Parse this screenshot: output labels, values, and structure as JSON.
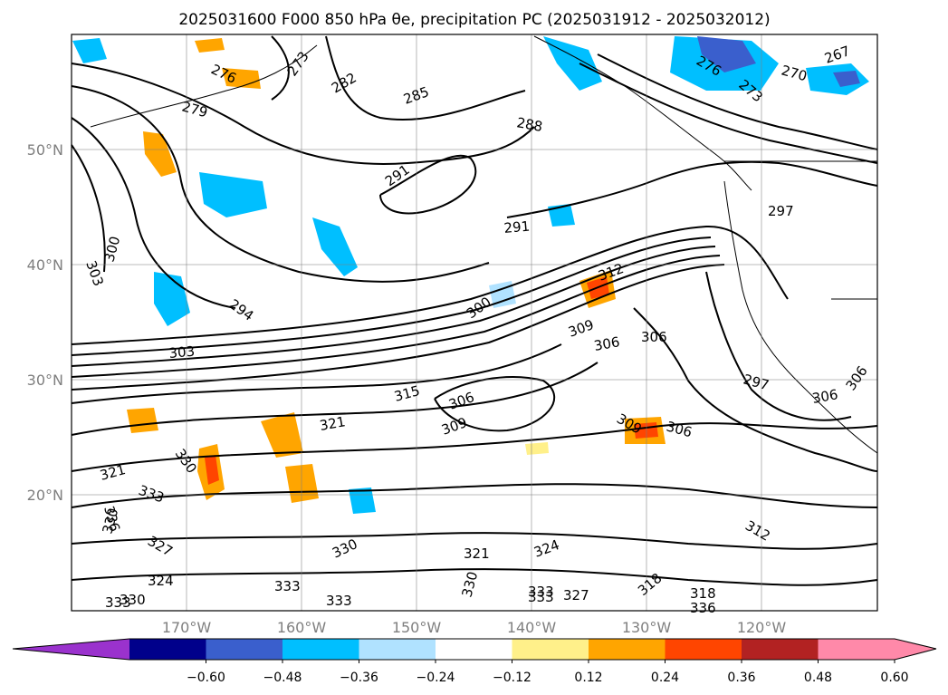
{
  "title": "2025031600 F000 850 hPa θe, precipitation PC (2025031912 - 2025032012)",
  "map": {
    "lat_labels": [
      "50°N",
      "40°N",
      "30°N",
      "20°N"
    ],
    "lon_labels": [
      "170°W",
      "160°W",
      "150°W",
      "140°W",
      "130°W",
      "120°W"
    ],
    "grid": true
  },
  "contour_labels": [
    "276",
    "273",
    "282",
    "285",
    "279",
    "288",
    "291",
    "291",
    "291",
    "267",
    "270",
    "276",
    "273",
    "297",
    "303",
    "300",
    "294",
    "312",
    "300",
    "309",
    "306",
    "306",
    "303",
    "315",
    "306",
    "309",
    "297",
    "306",
    "306",
    "309",
    "306",
    "321",
    "321",
    "330",
    "333",
    "336",
    "330",
    "327",
    "324",
    "330",
    "321",
    "324",
    "312",
    "333",
    "333",
    "330",
    "333",
    "327",
    "318",
    "318",
    "336",
    "333",
    "330",
    "333"
  ],
  "colorbar": {
    "ticks": [
      "−0.60",
      "−0.48",
      "−0.36",
      "−0.24",
      "−0.12",
      "0.12",
      "0.24",
      "0.36",
      "0.48",
      "0.60"
    ],
    "colors": [
      "#9a32cd",
      "#00008b",
      "#3a5fcd",
      "#00bfff",
      "#b0e2ff",
      "#ffffff",
      "#fff08a",
      "#ffa500",
      "#ff4500",
      "#b22222",
      "#ff89a9",
      "#ff89a9"
    ],
    "extend": "both"
  }
}
